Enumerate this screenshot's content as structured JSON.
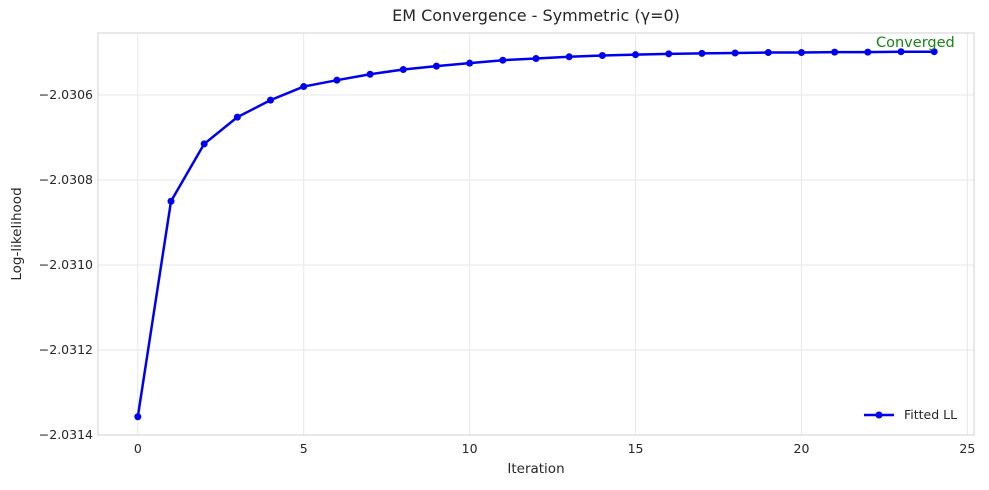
{
  "chart_data": {
    "type": "line",
    "title": "EM Convergence - Symmetric (γ=0)",
    "xlabel": "Iteration",
    "ylabel": "Log-likelihood",
    "xlim": [
      -1.2,
      25.2
    ],
    "ylim": [
      -2.0314,
      -2.030454
    ],
    "grid": true,
    "xticks": {
      "values": [
        0,
        5,
        10,
        15,
        20,
        25
      ],
      "labels": [
        "0",
        "5",
        "10",
        "15",
        "20",
        "25"
      ]
    },
    "yticks": {
      "values": [
        -2.0306,
        -2.0308,
        -2.031,
        -2.0312,
        -2.0314
      ],
      "labels": [
        "−2.0306",
        "−2.0308",
        "−2.0310",
        "−2.0312",
        "−2.0314"
      ]
    },
    "series": [
      {
        "name": "Fitted LL",
        "x": [
          0,
          1,
          2,
          3,
          4,
          5,
          6,
          7,
          8,
          9,
          10,
          11,
          12,
          13,
          14,
          15,
          16,
          17,
          18,
          19,
          20,
          21,
          22,
          23,
          24
        ],
        "values": [
          -2.031357,
          -2.03085,
          -2.030715,
          -2.030652,
          -2.030612,
          -2.03058,
          -2.030565,
          -2.030551,
          -2.03054,
          -2.030532,
          -2.030525,
          -2.030518,
          -2.030514,
          -2.03051,
          -2.030507,
          -2.030505,
          -2.030503,
          -2.030502,
          -2.030501,
          -2.0305,
          -2.0305,
          -2.030499,
          -2.030499,
          -2.030498,
          -2.030498
        ],
        "color": "#0000ee",
        "marker": "circle"
      }
    ],
    "legend": {
      "label": "Fitted LL",
      "position": "lower right"
    },
    "annotation": {
      "text": "Converged",
      "color": "#168416"
    },
    "colors": {
      "grid": "#e7e7e7",
      "spine": "#d9d9d9",
      "text": "#262626"
    }
  }
}
